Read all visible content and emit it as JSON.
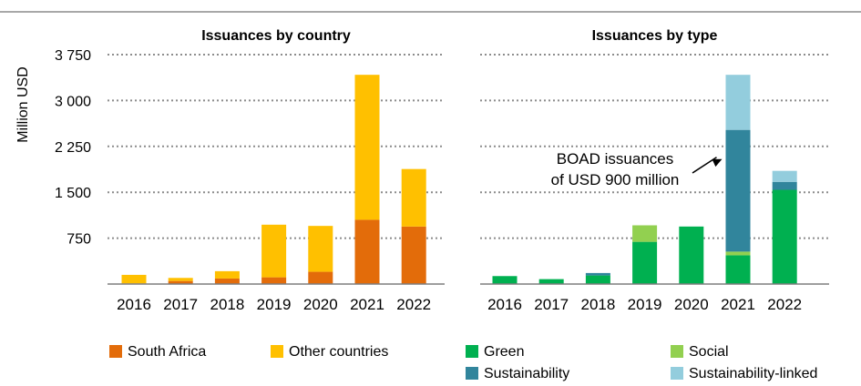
{
  "y_axis_label": "Million USD",
  "colors": {
    "south_africa": "#E36C0A",
    "other_countries": "#FFC000",
    "green": "#00B050",
    "social": "#92D050",
    "sustainability": "#31859C",
    "sustainability_linked": "#93CDDD",
    "grid": "#8C8C8C",
    "baseline": "#7F7F7F"
  },
  "legend": {
    "south_africa": "South Africa",
    "other_countries": "Other countries",
    "green": "Green",
    "social": "Social",
    "sustainability": "Sustainability",
    "sustainability_linked": "Sustainability-linked"
  },
  "chart_data": [
    {
      "type": "bar",
      "stacked": true,
      "title": "Issuances by country",
      "ylabel": "Million USD",
      "ylim": [
        0,
        3750
      ],
      "yticks": [
        750,
        1500,
        2250,
        3000,
        3750
      ],
      "ytick_labels": [
        "750",
        "1 500",
        "2 250",
        "3 000",
        "3 750"
      ],
      "grid": true,
      "categories": [
        "2016",
        "2017",
        "2018",
        "2019",
        "2020",
        "2021",
        "2022"
      ],
      "series": [
        {
          "name": "South Africa",
          "color_key": "south_africa",
          "values": [
            10,
            50,
            90,
            110,
            200,
            1050,
            940
          ]
        },
        {
          "name": "Other countries",
          "color_key": "other_countries",
          "values": [
            140,
            50,
            120,
            860,
            750,
            2370,
            940
          ]
        }
      ]
    },
    {
      "type": "bar",
      "stacked": true,
      "title": "Issuances by type",
      "ylim": [
        0,
        3750
      ],
      "yticks": [
        750,
        1500,
        2250,
        3000,
        3750
      ],
      "grid": true,
      "categories": [
        "2016",
        "2017",
        "2018",
        "2019",
        "2020",
        "2021",
        "2022"
      ],
      "series": [
        {
          "name": "Green",
          "color_key": "green",
          "values": [
            130,
            80,
            140,
            690,
            940,
            470,
            1540
          ]
        },
        {
          "name": "Social",
          "color_key": "social",
          "values": [
            0,
            0,
            0,
            270,
            0,
            60,
            0
          ]
        },
        {
          "name": "Sustainability",
          "color_key": "sustainability",
          "values": [
            0,
            0,
            40,
            0,
            0,
            1990,
            130
          ]
        },
        {
          "name": "Sustainability-linked",
          "color_key": "sustainability_linked",
          "values": [
            0,
            0,
            0,
            0,
            0,
            900,
            180
          ]
        }
      ],
      "annotation": {
        "lines": [
          "BOAD issuances",
          "of USD 900 million"
        ],
        "category": "2021",
        "series": "Sustainability"
      }
    }
  ]
}
